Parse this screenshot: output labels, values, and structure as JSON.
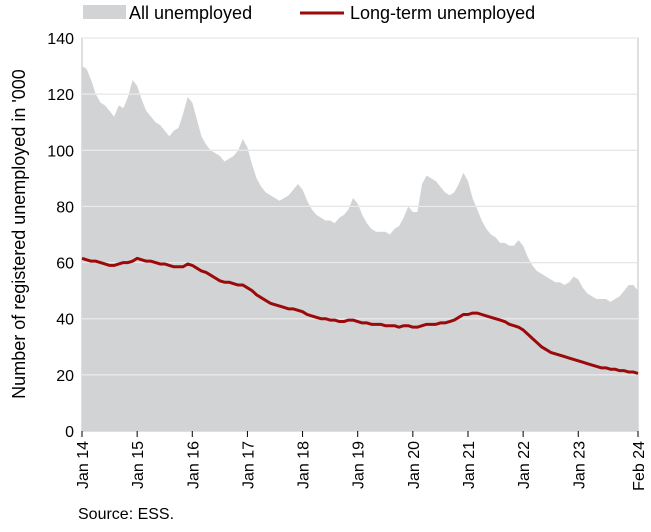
{
  "chart_data": {
    "type": "area",
    "ylabel": "Number of registered unemployed in '000",
    "ylim": [
      0,
      140
    ],
    "yticks": [
      0,
      20,
      40,
      60,
      80,
      100,
      120,
      140
    ],
    "xticks": [
      "Jan 14",
      "Jan 15",
      "Jan 16",
      "Jan 17",
      "Jan 18",
      "Jan 19",
      "Jan 20",
      "Jan 21",
      "Jan 22",
      "Jan 23",
      "Feb 24"
    ],
    "grid": "horizontal",
    "legend_position": "top",
    "colors": {
      "area": "#d2d3d5",
      "line": "#9b0a0a"
    },
    "series": [
      {
        "name": "All unemployed",
        "kind": "area",
        "x": [
          "2014-01",
          "2014-02",
          "2014-03",
          "2014-04",
          "2014-05",
          "2014-06",
          "2014-07",
          "2014-08",
          "2014-09",
          "2014-10",
          "2014-11",
          "2014-12",
          "2015-01",
          "2015-02",
          "2015-03",
          "2015-04",
          "2015-05",
          "2015-06",
          "2015-07",
          "2015-08",
          "2015-09",
          "2015-10",
          "2015-11",
          "2015-12",
          "2016-01",
          "2016-02",
          "2016-03",
          "2016-04",
          "2016-05",
          "2016-06",
          "2016-07",
          "2016-08",
          "2016-09",
          "2016-10",
          "2016-11",
          "2016-12",
          "2017-01",
          "2017-02",
          "2017-03",
          "2017-04",
          "2017-05",
          "2017-06",
          "2017-07",
          "2017-08",
          "2017-09",
          "2017-10",
          "2017-11",
          "2017-12",
          "2018-01",
          "2018-02",
          "2018-03",
          "2018-04",
          "2018-05",
          "2018-06",
          "2018-07",
          "2018-08",
          "2018-09",
          "2018-10",
          "2018-11",
          "2018-12",
          "2019-01",
          "2019-02",
          "2019-03",
          "2019-04",
          "2019-05",
          "2019-06",
          "2019-07",
          "2019-08",
          "2019-09",
          "2019-10",
          "2019-11",
          "2019-12",
          "2020-01",
          "2020-02",
          "2020-03",
          "2020-04",
          "2020-05",
          "2020-06",
          "2020-07",
          "2020-08",
          "2020-09",
          "2020-10",
          "2020-11",
          "2020-12",
          "2021-01",
          "2021-02",
          "2021-03",
          "2021-04",
          "2021-05",
          "2021-06",
          "2021-07",
          "2021-08",
          "2021-09",
          "2021-10",
          "2021-11",
          "2021-12",
          "2022-01",
          "2022-02",
          "2022-03",
          "2022-04",
          "2022-05",
          "2022-06",
          "2022-07",
          "2022-08",
          "2022-09",
          "2022-10",
          "2022-11",
          "2022-12",
          "2023-01",
          "2023-02",
          "2023-03",
          "2023-04",
          "2023-05",
          "2023-06",
          "2023-07",
          "2023-08",
          "2023-09",
          "2023-10",
          "2023-11",
          "2023-12",
          "2024-01",
          "2024-02"
        ],
        "values": [
          130,
          129,
          125,
          120,
          117,
          116,
          114,
          112,
          116,
          115,
          119,
          125,
          123,
          118,
          114,
          112,
          110,
          109,
          107,
          105,
          107,
          108,
          113,
          119,
          117,
          111,
          105,
          102,
          100,
          99,
          98,
          96,
          97,
          98,
          100,
          104,
          101,
          95,
          90,
          87,
          85,
          84,
          83,
          82,
          83,
          84,
          86,
          88,
          86,
          82,
          79,
          77,
          76,
          75,
          75,
          74,
          76,
          77,
          79,
          83,
          81,
          77,
          74,
          72,
          71,
          71,
          71,
          70,
          72,
          73,
          76,
          80,
          78,
          78,
          88,
          91,
          90,
          89,
          87,
          85,
          84,
          85,
          88,
          92,
          89,
          83,
          79,
          75,
          72,
          70,
          69,
          67,
          67,
          66,
          66,
          68,
          66,
          62,
          59,
          57,
          56,
          55,
          54,
          53,
          53,
          52,
          53,
          55,
          54,
          51,
          49,
          48,
          47,
          47,
          47,
          46,
          47,
          48,
          50,
          52,
          52,
          50
        ]
      },
      {
        "name": "Long-term unemployed",
        "kind": "line",
        "x": [
          "2014-01",
          "2014-02",
          "2014-03",
          "2014-04",
          "2014-05",
          "2014-06",
          "2014-07",
          "2014-08",
          "2014-09",
          "2014-10",
          "2014-11",
          "2014-12",
          "2015-01",
          "2015-02",
          "2015-03",
          "2015-04",
          "2015-05",
          "2015-06",
          "2015-07",
          "2015-08",
          "2015-09",
          "2015-10",
          "2015-11",
          "2015-12",
          "2016-01",
          "2016-02",
          "2016-03",
          "2016-04",
          "2016-05",
          "2016-06",
          "2016-07",
          "2016-08",
          "2016-09",
          "2016-10",
          "2016-11",
          "2016-12",
          "2017-01",
          "2017-02",
          "2017-03",
          "2017-04",
          "2017-05",
          "2017-06",
          "2017-07",
          "2017-08",
          "2017-09",
          "2017-10",
          "2017-11",
          "2017-12",
          "2018-01",
          "2018-02",
          "2018-03",
          "2018-04",
          "2018-05",
          "2018-06",
          "2018-07",
          "2018-08",
          "2018-09",
          "2018-10",
          "2018-11",
          "2018-12",
          "2019-01",
          "2019-02",
          "2019-03",
          "2019-04",
          "2019-05",
          "2019-06",
          "2019-07",
          "2019-08",
          "2019-09",
          "2019-10",
          "2019-11",
          "2019-12",
          "2020-01",
          "2020-02",
          "2020-03",
          "2020-04",
          "2020-05",
          "2020-06",
          "2020-07",
          "2020-08",
          "2020-09",
          "2020-10",
          "2020-11",
          "2020-12",
          "2021-01",
          "2021-02",
          "2021-03",
          "2021-04",
          "2021-05",
          "2021-06",
          "2021-07",
          "2021-08",
          "2021-09",
          "2021-10",
          "2021-11",
          "2021-12",
          "2022-01",
          "2022-02",
          "2022-03",
          "2022-04",
          "2022-05",
          "2022-06",
          "2022-07",
          "2022-08",
          "2022-09",
          "2022-10",
          "2022-11",
          "2022-12",
          "2023-01",
          "2023-02",
          "2023-03",
          "2023-04",
          "2023-05",
          "2023-06",
          "2023-07",
          "2023-08",
          "2023-09",
          "2023-10",
          "2023-11",
          "2023-12",
          "2024-01",
          "2024-02"
        ],
        "values": [
          61.5,
          61,
          60.5,
          60.5,
          60,
          59.5,
          59,
          59,
          59.5,
          60,
          60,
          60.5,
          61.5,
          61,
          60.5,
          60.5,
          60,
          59.5,
          59.5,
          59,
          58.5,
          58.5,
          58.5,
          59.5,
          59,
          58,
          57,
          56.5,
          55.5,
          54.5,
          53.5,
          53,
          53,
          52.5,
          52,
          52,
          51,
          50,
          48.5,
          47.5,
          46.5,
          45.5,
          45,
          44.5,
          44,
          43.5,
          43.5,
          43,
          42.5,
          41.5,
          41,
          40.5,
          40,
          40,
          39.5,
          39.5,
          39,
          39,
          39.5,
          39.5,
          39,
          38.5,
          38.5,
          38,
          38,
          38,
          37.5,
          37.5,
          37.5,
          37,
          37.5,
          37.5,
          37,
          37,
          37.5,
          38,
          38,
          38,
          38.5,
          38.5,
          39,
          39.5,
          40.5,
          41.5,
          41.5,
          42,
          42,
          41.5,
          41,
          40.5,
          40,
          39.5,
          39,
          38,
          37.5,
          37,
          36,
          34.5,
          33,
          31.5,
          30,
          29,
          28,
          27.5,
          27,
          26.5,
          26,
          25.5,
          25,
          24.5,
          24,
          23.5,
          23,
          22.5,
          22.5,
          22,
          22,
          21.5,
          21.5,
          21,
          21,
          20.5
        ]
      }
    ]
  },
  "legend": {
    "area_label": "All unemployed",
    "line_label": "Long-term unemployed"
  },
  "source": "Source: ESS."
}
